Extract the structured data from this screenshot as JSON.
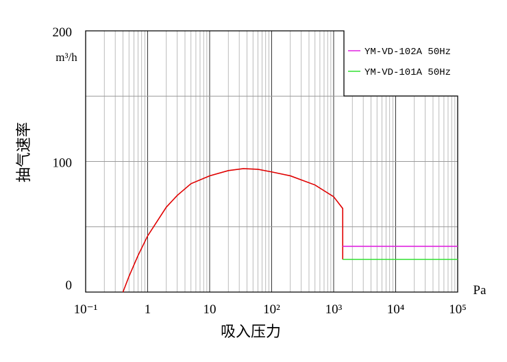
{
  "chart_data": {
    "type": "line",
    "ylabel": "抽气速率",
    "y_unit": "m³/h",
    "xlabel": "吸入压力",
    "x_unit": "Pa",
    "xscale": "log",
    "minor_grid": true,
    "grid": true,
    "legend": "upper right",
    "xlim": [
      0.1,
      100000
    ],
    "ylim": [
      0,
      200
    ],
    "xticks": [
      {
        "value": 0.1,
        "label": "10⁻¹"
      },
      1,
      10,
      {
        "value": 100,
        "label": "10²"
      },
      {
        "value": 1000,
        "label": "10³"
      },
      {
        "value": 10000,
        "label": "10⁴"
      },
      {
        "value": 100000,
        "label": "10⁵"
      }
    ],
    "yticks": [
      0,
      100,
      200
    ],
    "y_extra_grid": [
      50,
      150
    ],
    "series": [
      {
        "color": "#e00000",
        "x": [
          0.4,
          0.5,
          0.7,
          1,
          2,
          3,
          5,
          10,
          20,
          35,
          60,
          100,
          200,
          500,
          1000,
          1400,
          1400
        ],
        "values": [
          0,
          12,
          28,
          43,
          65,
          74,
          83,
          89,
          93,
          94.5,
          94,
          92,
          89,
          82,
          73,
          64,
          25
        ]
      },
      {
        "name": "YM-VD-102A 50Hz",
        "color": "#e020e0",
        "x": [
          1400,
          100000
        ],
        "values": [
          35,
          35
        ]
      },
      {
        "name": "YM-VD-101A 50Hz",
        "color": "#30e030",
        "x": [
          1400,
          100000
        ],
        "values": [
          25,
          25
        ]
      }
    ]
  }
}
